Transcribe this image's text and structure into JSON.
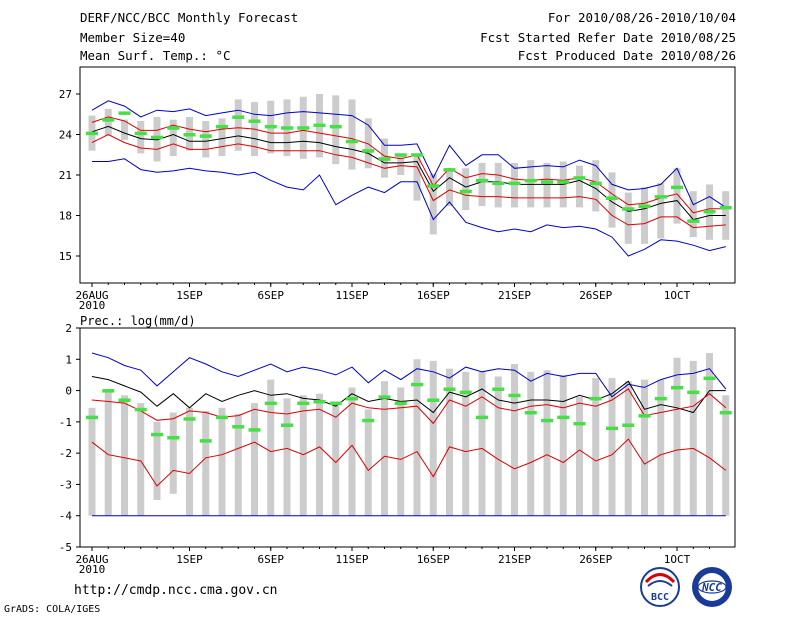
{
  "header": {
    "title": "DERF/NCC/BCC Monthly Forecast",
    "member_size": "Member Size=40",
    "variable": "Mean Surf. Temp.: °C",
    "period": "For 2010/08/26-2010/10/04",
    "start_date": "Fcst Started Refer Date 2010/08/25",
    "produced_date": "Fcst Produced Date 2010/08/26"
  },
  "footer": {
    "url": "http://cmdp.ncc.cma.gov.cn",
    "credit": "GrADS: COLA/IGES",
    "logo1_text": "BCC",
    "logo2_text": "NCC"
  },
  "colors": {
    "box": "#cccccc",
    "obs": "#44e044",
    "mean": "#000000",
    "spread": "#dd0000",
    "extreme": "#0000cc",
    "axis": "#000000"
  },
  "chart_data": [
    {
      "type": "line",
      "title": "Mean Surf. Temp.: °C",
      "xlabel": "",
      "ylabel": "",
      "x_tick_labels": [
        "26AUG\n2010",
        "1SEP",
        "6SEP",
        "11SEP",
        "16SEP",
        "21SEP",
        "26SEP",
        "1OCT"
      ],
      "x_ticks_day": [
        0,
        6,
        11,
        16,
        21,
        26,
        31,
        36
      ],
      "y_ticks": [
        15,
        18,
        21,
        24,
        27
      ],
      "ylim": [
        13,
        29
      ],
      "days": 39,
      "series": [
        {
          "name": "max",
          "values": [
            25.8,
            26.5,
            26.1,
            25.3,
            25.8,
            25.7,
            25.9,
            25.4,
            25.6,
            25.8,
            25.5,
            25.4,
            25.6,
            25.7,
            25.6,
            25.5,
            25.4,
            24.7,
            23.2,
            23.2,
            23.3,
            20.8,
            23.2,
            21.7,
            22.5,
            22.5,
            21.5,
            21.6,
            21.7,
            21.6,
            22.1,
            21.7,
            20.3,
            19.9,
            20.0,
            20.3,
            21.5,
            18.8,
            19.4,
            18.6
          ]
        },
        {
          "name": "upper",
          "values": [
            24.9,
            25.3,
            25.0,
            24.3,
            24.3,
            24.7,
            24.4,
            24.2,
            24.4,
            24.5,
            24.4,
            24.1,
            24.1,
            24.3,
            24.1,
            23.9,
            23.7,
            23.3,
            22.4,
            22.2,
            22.5,
            20.2,
            21.5,
            20.8,
            21.1,
            21.0,
            20.7,
            20.6,
            20.7,
            20.6,
            20.8,
            20.5,
            19.6,
            18.8,
            18.9,
            19.3,
            19.6,
            18.2,
            18.5,
            18.5
          ]
        },
        {
          "name": "mean",
          "values": [
            24.2,
            24.6,
            24.1,
            23.7,
            23.6,
            24.0,
            23.5,
            23.5,
            23.7,
            23.9,
            23.7,
            23.4,
            23.4,
            23.5,
            23.4,
            23.1,
            22.9,
            22.6,
            21.9,
            21.9,
            22.0,
            19.8,
            20.8,
            20.1,
            20.5,
            20.5,
            20.3,
            20.3,
            20.3,
            20.3,
            20.6,
            20.0,
            19.0,
            18.3,
            18.5,
            18.9,
            19.1,
            17.7,
            18.0,
            18.0
          ]
        },
        {
          "name": "lower",
          "values": [
            23.4,
            24.0,
            23.4,
            23.0,
            22.9,
            23.3,
            22.9,
            22.9,
            23.1,
            23.3,
            23.1,
            22.8,
            22.8,
            22.8,
            22.8,
            22.5,
            22.3,
            21.9,
            21.5,
            21.7,
            21.6,
            19.1,
            19.9,
            19.5,
            19.4,
            19.4,
            19.3,
            19.3,
            19.3,
            19.3,
            19.4,
            19.2,
            18.0,
            17.3,
            17.4,
            17.9,
            17.9,
            17.1,
            17.2,
            17.3
          ]
        },
        {
          "name": "min",
          "values": [
            22.0,
            22.0,
            22.2,
            21.4,
            21.2,
            21.3,
            21.5,
            21.3,
            21.2,
            21.0,
            21.2,
            20.6,
            20.1,
            19.9,
            21.0,
            18.8,
            19.5,
            20.1,
            19.7,
            20.5,
            20.5,
            17.7,
            19.0,
            17.5,
            17.1,
            16.8,
            17.0,
            16.8,
            17.3,
            17.1,
            17.2,
            17.0,
            16.4,
            15.0,
            15.5,
            16.2,
            16.1,
            15.8,
            15.4,
            15.7
          ]
        },
        {
          "name": "obs",
          "values": [
            24.1,
            25.1,
            25.6,
            24.1,
            23.8,
            24.5,
            24.0,
            23.9,
            24.6,
            25.3,
            25.0,
            24.6,
            24.5,
            24.5,
            24.7,
            24.6,
            23.5,
            22.8,
            22.2,
            22.5,
            22.5,
            20.2,
            21.4,
            19.8,
            20.6,
            20.4,
            20.4,
            20.6,
            20.5,
            20.5,
            20.8,
            20.4,
            19.3,
            18.5,
            18.7,
            19.4,
            20.1,
            17.6,
            18.3,
            18.6
          ]
        }
      ],
      "box_low": [
        22.8,
        23.9,
        23.6,
        22.6,
        22.0,
        22.4,
        22.8,
        22.3,
        22.4,
        22.8,
        22.4,
        22.6,
        22.4,
        22.2,
        22.3,
        21.8,
        21.4,
        21.5,
        20.8,
        21.0,
        19.1,
        16.6,
        18.7,
        18.4,
        18.7,
        18.6,
        18.6,
        18.6,
        18.6,
        18.6,
        18.6,
        18.3,
        17.1,
        15.9,
        15.9,
        16.3,
        17.4,
        16.4,
        16.2,
        16.2
      ],
      "box_high": [
        25.4,
        25.9,
        25.1,
        25.0,
        25.3,
        25.1,
        25.3,
        25.0,
        25.2,
        26.6,
        26.4,
        26.5,
        26.6,
        26.8,
        27.0,
        26.9,
        26.6,
        25.2,
        23.7,
        22.6,
        22.6,
        21.1,
        21.4,
        21.5,
        21.9,
        21.9,
        21.9,
        22.1,
        21.9,
        22.0,
        21.7,
        22.1,
        21.2,
        19.7,
        20.1,
        20.4,
        21.5,
        19.8,
        20.3,
        19.8
      ]
    },
    {
      "type": "line",
      "title": "Prec.: log(mm/d)",
      "xlabel": "",
      "ylabel": "",
      "x_tick_labels": [
        "26AUG\n2010",
        "1SEP",
        "6SEP",
        "11SEP",
        "16SEP",
        "21SEP",
        "26SEP",
        "1OCT"
      ],
      "x_ticks_day": [
        0,
        6,
        11,
        16,
        21,
        26,
        31,
        36
      ],
      "y_ticks": [
        -5,
        -4,
        -3,
        -2,
        -1,
        0,
        1,
        2
      ],
      "ylim": [
        -5,
        2
      ],
      "days": 39,
      "series": [
        {
          "name": "max",
          "values": [
            1.2,
            1.05,
            0.8,
            0.65,
            0.15,
            0.6,
            1.05,
            0.85,
            0.6,
            0.45,
            0.65,
            0.85,
            0.6,
            0.75,
            0.65,
            0.5,
            0.75,
            0.25,
            0.65,
            0.35,
            0.7,
            0.6,
            0.4,
            0.75,
            0.6,
            0.7,
            0.65,
            0.3,
            0.55,
            0.45,
            0.55,
            0.55,
            -0.2,
            0.2,
            0.1,
            0.35,
            0.5,
            0.55,
            0.7,
            0.05
          ]
        },
        {
          "name": "mean",
          "values": [
            0.45,
            0.35,
            0.15,
            -0.05,
            -0.5,
            -0.1,
            -0.55,
            -0.1,
            -0.35,
            -0.15,
            0.0,
            -0.15,
            -0.1,
            -0.25,
            -0.3,
            -0.5,
            -0.1,
            -0.35,
            -0.25,
            -0.35,
            -0.3,
            -0.7,
            -0.05,
            -0.2,
            0.05,
            -0.3,
            -0.4,
            -0.3,
            -0.3,
            -0.35,
            -0.15,
            -0.3,
            -0.1,
            0.3,
            -0.6,
            -0.45,
            -0.55,
            -0.7,
            0.0,
            0.0
          ]
        },
        {
          "name": "upper",
          "values": [
            -0.3,
            -0.35,
            -0.4,
            -0.65,
            -0.95,
            -0.9,
            -0.65,
            -0.7,
            -0.85,
            -0.8,
            -0.6,
            -0.7,
            -0.75,
            -0.65,
            -0.6,
            -0.85,
            -0.4,
            -0.55,
            -0.6,
            -0.55,
            -0.5,
            -1.05,
            -0.3,
            -0.5,
            -0.2,
            -0.55,
            -0.65,
            -0.5,
            -0.45,
            -0.55,
            -0.4,
            -0.5,
            -0.3,
            0.05,
            -0.8,
            -0.7,
            -0.6,
            -0.5,
            -0.1,
            -0.55
          ]
        },
        {
          "name": "lower",
          "values": [
            -1.65,
            -2.05,
            -2.15,
            -2.25,
            -3.05,
            -2.55,
            -2.65,
            -2.15,
            -2.05,
            -1.85,
            -1.65,
            -1.95,
            -1.85,
            -2.05,
            -1.8,
            -2.3,
            -1.75,
            -2.55,
            -2.1,
            -2.2,
            -1.95,
            -2.75,
            -1.8,
            -1.95,
            -1.85,
            -2.2,
            -2.5,
            -2.3,
            -2.05,
            -2.3,
            -1.9,
            -2.25,
            -2.05,
            -1.55,
            -2.35,
            -2.05,
            -1.9,
            -1.85,
            -2.15,
            -2.55
          ]
        },
        {
          "name": "min",
          "values": [
            -4,
            -4,
            -4,
            -4,
            -4,
            -4,
            -4,
            -4,
            -4,
            -4,
            -4,
            -4,
            -4,
            -4,
            -4,
            -4,
            -4,
            -4,
            -4,
            -4,
            -4,
            -4,
            -4,
            -4,
            -4,
            -4,
            -4,
            -4,
            -4,
            -4,
            -4,
            -4,
            -4,
            -4,
            -4,
            -4,
            -4,
            -4,
            -4,
            -4
          ]
        },
        {
          "name": "obs",
          "values": [
            -0.85,
            0.0,
            -0.3,
            -0.6,
            -1.4,
            -1.5,
            -0.9,
            -1.6,
            -0.85,
            -1.15,
            -1.25,
            -0.4,
            -1.1,
            -0.4,
            -0.35,
            -0.4,
            -0.25,
            -0.95,
            -0.2,
            -0.4,
            0.2,
            -0.3,
            0.05,
            -0.05,
            -0.85,
            0.05,
            -0.15,
            -0.7,
            -0.95,
            -0.85,
            -1.05,
            -0.25,
            -1.2,
            -1.1,
            -0.8,
            -0.25,
            0.1,
            -0.05,
            0.4,
            -0.7
          ]
        }
      ],
      "box_low": [
        -4,
        -4,
        -4,
        -4,
        -3.5,
        -3.3,
        -4,
        -4,
        -4,
        -4,
        -4,
        -4,
        -4,
        -4,
        -4,
        -4,
        -4,
        -4,
        -4,
        -4,
        -4,
        -4,
        -4,
        -4,
        -4,
        -4,
        -4,
        -4,
        -4,
        -4,
        -4,
        -4,
        -4,
        -4,
        -4,
        -4,
        -4,
        -4,
        -4,
        -4
      ],
      "box_high": [
        -0.55,
        0.0,
        -0.15,
        -0.4,
        -1.0,
        -0.7,
        -0.55,
        -0.65,
        -0.55,
        -0.75,
        -0.4,
        0.35,
        -0.25,
        -0.15,
        -0.1,
        -0.35,
        0.1,
        -0.6,
        0.3,
        0.1,
        1.0,
        0.95,
        0.7,
        0.6,
        0.6,
        0.45,
        0.85,
        0.6,
        0.65,
        0.5,
        -0.2,
        0.4,
        0.4,
        0.3,
        0.35,
        0.35,
        1.05,
        0.95,
        1.2,
        -0.15
      ]
    }
  ]
}
